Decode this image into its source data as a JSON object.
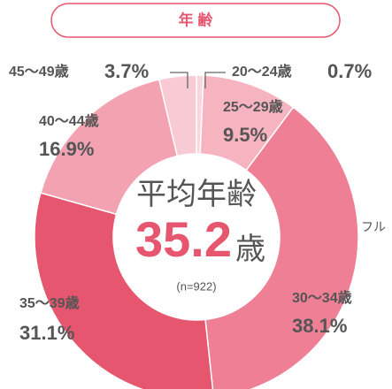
{
  "chart_data": {
    "type": "pie",
    "title": "年 齢",
    "categories": [
      "20〜24歳",
      "25〜29歳",
      "30〜34歳",
      "35〜39歳",
      "40〜44歳",
      "45〜49歳"
    ],
    "values": [
      0.7,
      9.5,
      38.1,
      31.1,
      16.9,
      3.7
    ],
    "value_labels": [
      "0.7%",
      "9.5%",
      "38.1%",
      "31.1%",
      "16.9%",
      "3.7%"
    ],
    "colors": [
      "#f9d6dc",
      "#f6b3c0",
      "#ee7f95",
      "#e7566f",
      "#f2a2b1",
      "#f8cbd4"
    ],
    "center_label": "平均年齢",
    "average": 35.2,
    "average_unit": "歳",
    "sample": "(n=922)",
    "side_text": "フル"
  }
}
